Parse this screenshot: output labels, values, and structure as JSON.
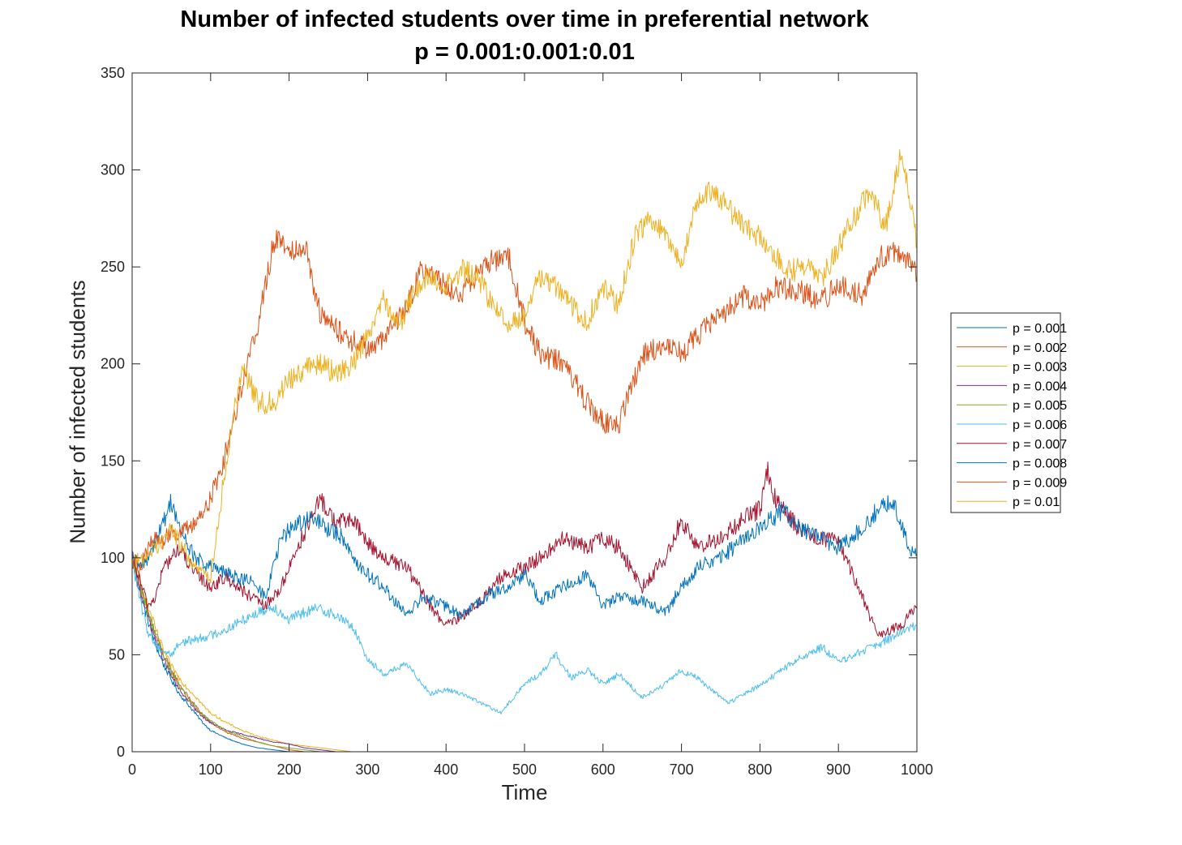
{
  "chart_data": {
    "type": "line",
    "title": "Number of infected students over time in preferential network",
    "subtitle": "p = 0.001:0.001:0.01",
    "xlabel": "Time",
    "ylabel": "Number of infected students",
    "xlim": [
      0,
      1000
    ],
    "ylim": [
      0,
      350
    ],
    "x_ticks": [
      "0",
      "100",
      "200",
      "300",
      "400",
      "500",
      "600",
      "700",
      "800",
      "900",
      "1000"
    ],
    "y_ticks": [
      "0",
      "50",
      "100",
      "150",
      "200",
      "250",
      "300",
      "350"
    ],
    "grid": false,
    "legend_position": "outside-right",
    "series": [
      {
        "name": "p = 0.001",
        "color": "#0072BD",
        "x": [
          0,
          10,
          20,
          30,
          40,
          50,
          60,
          70,
          80,
          90,
          100,
          120,
          140,
          160,
          180,
          200,
          1000
        ],
        "y": [
          100,
          82,
          68,
          55,
          45,
          37,
          30,
          25,
          20,
          15,
          11,
          7,
          4,
          2,
          1,
          0,
          0
        ]
      },
      {
        "name": "p = 0.002",
        "color": "#D95319",
        "x": [
          0,
          10,
          20,
          30,
          40,
          50,
          60,
          70,
          80,
          90,
          100,
          120,
          140,
          160,
          180,
          200,
          220,
          240,
          1000
        ],
        "y": [
          100,
          85,
          72,
          60,
          50,
          42,
          35,
          29,
          24,
          19,
          15,
          10,
          7,
          5,
          3,
          1,
          0,
          0,
          0
        ]
      },
      {
        "name": "p = 0.003",
        "color": "#EDB120",
        "x": [
          0,
          10,
          20,
          30,
          40,
          50,
          60,
          70,
          80,
          90,
          100,
          120,
          140,
          160,
          180,
          200,
          220,
          240,
          260,
          280,
          1000
        ],
        "y": [
          100,
          87,
          75,
          63,
          52,
          44,
          38,
          33,
          29,
          24,
          20,
          15,
          11,
          8,
          6,
          4,
          3,
          2,
          1,
          0,
          0
        ]
      },
      {
        "name": "p = 0.004",
        "color": "#7E2F8E",
        "x": [
          0,
          10,
          20,
          30,
          40,
          50,
          60,
          70,
          80,
          90,
          100,
          120,
          140,
          160,
          180,
          200,
          220,
          240,
          260,
          1000
        ],
        "y": [
          100,
          84,
          70,
          58,
          48,
          39,
          32,
          27,
          22,
          18,
          15,
          11,
          9,
          7,
          5,
          4,
          2,
          1,
          0,
          0
        ]
      },
      {
        "name": "p = 0.005",
        "color": "#77AC30",
        "x": [
          0,
          10,
          20,
          30,
          40,
          50,
          60,
          70,
          80,
          90,
          100,
          120,
          140,
          160,
          180,
          200,
          220,
          240,
          1000
        ],
        "y": [
          100,
          86,
          72,
          61,
          50,
          41,
          34,
          28,
          23,
          19,
          16,
          11,
          8,
          5,
          3,
          2,
          1,
          0,
          0
        ]
      },
      {
        "name": "p = 0.006",
        "color": "#4DBEEE",
        "x": [
          0,
          10,
          20,
          30,
          40,
          50,
          60,
          80,
          100,
          120,
          150,
          180,
          200,
          220,
          240,
          260,
          280,
          300,
          320,
          350,
          380,
          400,
          420,
          450,
          470,
          500,
          520,
          540,
          560,
          580,
          600,
          620,
          650,
          680,
          700,
          720,
          760,
          780,
          800,
          820,
          850,
          880,
          900,
          920,
          950,
          980,
          1000
        ],
        "y": [
          100,
          78,
          62,
          55,
          52,
          50,
          56,
          58,
          60,
          63,
          70,
          75,
          68,
          72,
          74,
          70,
          65,
          48,
          40,
          45,
          30,
          32,
          30,
          24,
          20,
          35,
          40,
          50,
          38,
          42,
          35,
          40,
          28,
          35,
          42,
          38,
          25,
          30,
          34,
          40,
          48,
          54,
          46,
          50,
          55,
          62,
          65
        ]
      },
      {
        "name": "p = 0.007",
        "color": "#A2142F",
        "x": [
          0,
          10,
          20,
          30,
          40,
          50,
          60,
          80,
          100,
          120,
          150,
          170,
          190,
          210,
          240,
          260,
          280,
          300,
          320,
          350,
          380,
          400,
          420,
          450,
          470,
          500,
          520,
          550,
          580,
          600,
          620,
          650,
          680,
          700,
          720,
          750,
          780,
          800,
          810,
          820,
          850,
          880,
          900,
          920,
          950,
          980,
          1000
        ],
        "y": [
          100,
          88,
          75,
          80,
          95,
          100,
          105,
          92,
          85,
          90,
          80,
          75,
          85,
          105,
          130,
          118,
          120,
          108,
          100,
          95,
          75,
          65,
          70,
          80,
          90,
          95,
          100,
          110,
          105,
          110,
          105,
          85,
          100,
          120,
          105,
          110,
          120,
          125,
          145,
          130,
          115,
          110,
          108,
          90,
          60,
          65,
          75
        ]
      },
      {
        "name": "p = 0.008",
        "color": "#0072BD",
        "x": [
          0,
          10,
          20,
          30,
          40,
          50,
          60,
          80,
          100,
          120,
          150,
          170,
          190,
          210,
          230,
          250,
          270,
          290,
          320,
          350,
          370,
          400,
          420,
          450,
          480,
          500,
          520,
          550,
          580,
          600,
          620,
          650,
          680,
          700,
          720,
          750,
          780,
          800,
          830,
          850,
          880,
          900,
          930,
          950,
          970,
          990,
          1000
        ],
        "y": [
          100,
          95,
          100,
          110,
          118,
          130,
          115,
          100,
          95,
          92,
          88,
          80,
          110,
          118,
          120,
          115,
          110,
          95,
          85,
          70,
          80,
          75,
          70,
          80,
          85,
          92,
          78,
          85,
          92,
          75,
          80,
          78,
          72,
          85,
          95,
          100,
          110,
          115,
          125,
          115,
          110,
          105,
          115,
          125,
          130,
          105,
          102
        ]
      },
      {
        "name": "p = 0.009",
        "color": "#D95319",
        "x": [
          0,
          10,
          20,
          30,
          40,
          50,
          60,
          80,
          100,
          120,
          140,
          160,
          180,
          190,
          200,
          220,
          240,
          260,
          280,
          300,
          320,
          350,
          370,
          400,
          420,
          450,
          480,
          500,
          520,
          550,
          580,
          600,
          620,
          650,
          680,
          700,
          720,
          750,
          780,
          800,
          820,
          850,
          880,
          900,
          930,
          950,
          980,
          1000
        ],
        "y": [
          100,
          95,
          105,
          110,
          108,
          115,
          112,
          118,
          130,
          155,
          190,
          220,
          262,
          265,
          258,
          262,
          225,
          218,
          212,
          208,
          212,
          230,
          250,
          240,
          235,
          252,
          255,
          222,
          205,
          200,
          180,
          170,
          168,
          205,
          210,
          205,
          215,
          225,
          235,
          230,
          240,
          238,
          232,
          242,
          235,
          255,
          258,
          245
        ]
      },
      {
        "name": "p = 0.01",
        "color": "#EDB120",
        "x": [
          0,
          10,
          20,
          30,
          40,
          50,
          60,
          80,
          100,
          120,
          140,
          160,
          180,
          200,
          220,
          240,
          260,
          280,
          300,
          320,
          340,
          360,
          380,
          400,
          420,
          440,
          460,
          480,
          500,
          520,
          540,
          560,
          580,
          600,
          620,
          640,
          660,
          680,
          700,
          720,
          740,
          760,
          780,
          800,
          820,
          840,
          860,
          880,
          900,
          920,
          940,
          960,
          980,
          1000
        ],
        "y": [
          100,
          98,
          102,
          105,
          110,
          115,
          108,
          95,
          90,
          150,
          200,
          180,
          180,
          192,
          198,
          200,
          195,
          200,
          215,
          235,
          220,
          238,
          245,
          240,
          248,
          245,
          230,
          220,
          225,
          245,
          240,
          230,
          222,
          240,
          230,
          265,
          275,
          265,
          250,
          285,
          290,
          280,
          270,
          265,
          255,
          248,
          250,
          245,
          260,
          275,
          290,
          270,
          310,
          262
        ]
      }
    ]
  }
}
